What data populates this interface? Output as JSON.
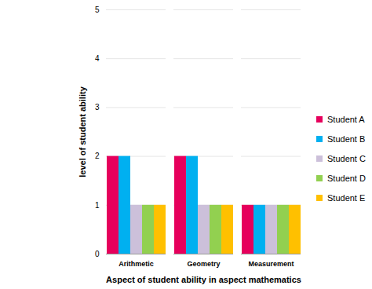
{
  "chart_data": {
    "type": "bar",
    "categories": [
      "Arithmetic",
      "Geometry",
      "Measurement"
    ],
    "series": [
      {
        "name": "Student A",
        "color": "#e6005c",
        "values": [
          2,
          2,
          1
        ]
      },
      {
        "name": "Student B",
        "color": "#00b0f0",
        "values": [
          2,
          2,
          1
        ]
      },
      {
        "name": "Student C",
        "color": "#ccc0da",
        "values": [
          1,
          1,
          1
        ]
      },
      {
        "name": "Student D",
        "color": "#92d050",
        "values": [
          1,
          1,
          1
        ]
      },
      {
        "name": "Student E",
        "color": "#ffc000",
        "values": [
          1,
          1,
          1
        ]
      }
    ],
    "xlabel": "Aspect of student ability in aspect mathematics",
    "ylabel": "level of student ability",
    "ylim": [
      0,
      5
    ],
    "yticks": [
      0,
      1,
      2,
      3,
      4,
      5
    ],
    "grid": true,
    "legend": "right"
  }
}
